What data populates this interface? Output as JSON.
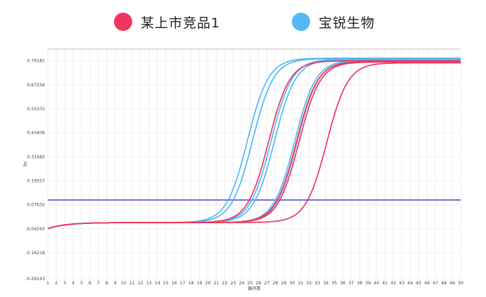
{
  "legend": [
    {
      "label": "某上市竞品1",
      "color": "#f0365e"
    },
    {
      "label": "宝锐生物",
      "color": "#55b8f2"
    }
  ],
  "chart_data": {
    "type": "line",
    "title": "",
    "xlabel": "循环数",
    "ylabel": "Rn",
    "xlim": [
      1,
      50
    ],
    "ylim": [
      -0.29143,
      0.85
    ],
    "x_ticks": [
      1,
      2,
      3,
      4,
      5,
      6,
      7,
      8,
      9,
      10,
      11,
      12,
      13,
      14,
      15,
      16,
      17,
      18,
      19,
      20,
      21,
      22,
      23,
      24,
      25,
      26,
      27,
      28,
      29,
      30,
      31,
      32,
      33,
      34,
      35,
      36,
      37,
      38,
      39,
      40,
      41,
      42,
      43,
      44,
      45,
      46,
      47,
      48,
      49,
      50
    ],
    "y_ticks": [
      "0.79181",
      "0.67256",
      "0.55331",
      "0.43406",
      "0.31482",
      "0.19557",
      "0.07632",
      "-0.04293",
      "-0.16218",
      "-0.29143"
    ],
    "y_tick_values": [
      0.79181,
      0.67256,
      0.55331,
      0.43406,
      0.31482,
      0.19557,
      0.07632,
      -0.04293,
      -0.16218,
      -0.29143
    ],
    "grid": true,
    "threshold": {
      "value": 0.1,
      "color": "#4b52dc"
    },
    "baseline": -0.012,
    "series": [
      {
        "name": "宝锐生物",
        "color": "#55b8f2",
        "ct": 22.0,
        "plateau": 0.805
      },
      {
        "name": "宝锐生物",
        "color": "#55b8f2",
        "ct": 22.6,
        "plateau": 0.803
      },
      {
        "name": "宝锐生物",
        "color": "#55b8f2",
        "ct": 24.8,
        "plateau": 0.8
      },
      {
        "name": "宝锐生物",
        "color": "#55b8f2",
        "ct": 25.2,
        "plateau": 0.798
      },
      {
        "name": "宝锐生物",
        "color": "#55b8f2",
        "ct": 27.6,
        "plateau": 0.795
      },
      {
        "name": "宝锐生物",
        "color": "#55b8f2",
        "ct": 27.9,
        "plateau": 0.793
      },
      {
        "name": "某上市竞品1",
        "color": "#f0365e",
        "ct": 24.5,
        "plateau": 0.792
      },
      {
        "name": "某上市竞品1",
        "color": "#f0365e",
        "ct": 27.8,
        "plateau": 0.788
      },
      {
        "name": "某上市竞品1",
        "color": "#f0365e",
        "ct": 28.1,
        "plateau": 0.786
      },
      {
        "name": "某上市竞品1",
        "color": "#f0365e",
        "ct": 31.4,
        "plateau": 0.782
      }
    ]
  }
}
